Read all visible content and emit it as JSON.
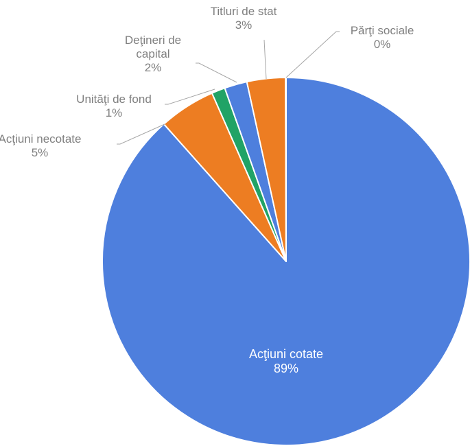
{
  "chart_data": {
    "type": "pie",
    "title": "",
    "start_angle_deg": 0,
    "direction": "clockwise",
    "slices": [
      {
        "name": "Acţiuni cotate",
        "value": 89,
        "value_label": "89%",
        "color": "#4e7fdd",
        "label_lines": [
          "Acţiuni cotate"
        ]
      },
      {
        "name": "Acţiuni necotate",
        "value": 5,
        "value_label": "5%",
        "color": "#ed7d22",
        "label_lines": [
          "Acţiuni necotate"
        ]
      },
      {
        "name": "Unităţi de fond",
        "value": 1.2,
        "value_label": "1%",
        "color": "#21a366",
        "label_lines": [
          "Unităţi de fond"
        ]
      },
      {
        "name": "Deţineri de capital",
        "value": 2,
        "value_label": "2%",
        "color": "#4e7fdd",
        "label_lines": [
          "Deţineri de",
          "capital"
        ]
      },
      {
        "name": "Titluri de stat",
        "value": 3.4,
        "value_label": "3%",
        "color": "#ed7d22",
        "label_lines": [
          "Titluri de stat"
        ]
      },
      {
        "name": "Părţi sociale",
        "value": 0.05,
        "value_label": "0%",
        "color": "#21a366",
        "label_lines": [
          "Părţi sociale"
        ]
      }
    ]
  }
}
